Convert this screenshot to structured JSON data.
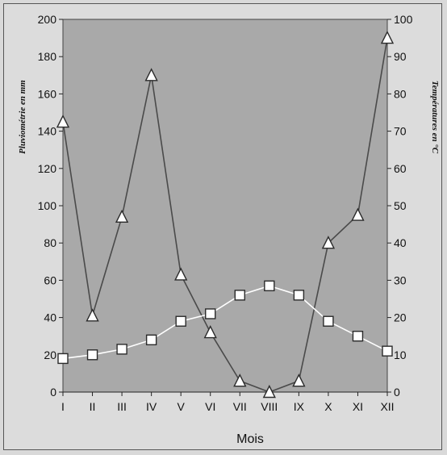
{
  "chart_data": {
    "type": "line",
    "title": "",
    "xlabel": "Mois",
    "ylabel_left": "Pluviométrie en mm",
    "ylabel_right": "Températures en °C",
    "categories": [
      "I",
      "II",
      "III",
      "IV",
      "V",
      "VI",
      "VII",
      "VIII",
      "IX",
      "X",
      "XI",
      "XII"
    ],
    "ylim_left": [
      0,
      200
    ],
    "yticks_left": [
      0,
      20,
      40,
      60,
      80,
      100,
      120,
      140,
      160,
      180,
      200
    ],
    "ylim_right": [
      0,
      100
    ],
    "yticks_right": [
      0,
      10,
      20,
      30,
      40,
      50,
      60,
      70,
      80,
      90,
      100
    ],
    "grid": false,
    "series": [
      {
        "marker": "triangle",
        "axis": "left",
        "color": "#4a4a4a",
        "values": [
          145,
          41,
          94,
          170,
          63,
          32,
          6,
          0,
          6,
          80,
          95,
          190
        ]
      },
      {
        "marker": "square",
        "axis": "right",
        "color": "#ffffff",
        "values": [
          9,
          10,
          11.5,
          14,
          19,
          21,
          26,
          28.5,
          26,
          19,
          15,
          11
        ]
      }
    ]
  }
}
